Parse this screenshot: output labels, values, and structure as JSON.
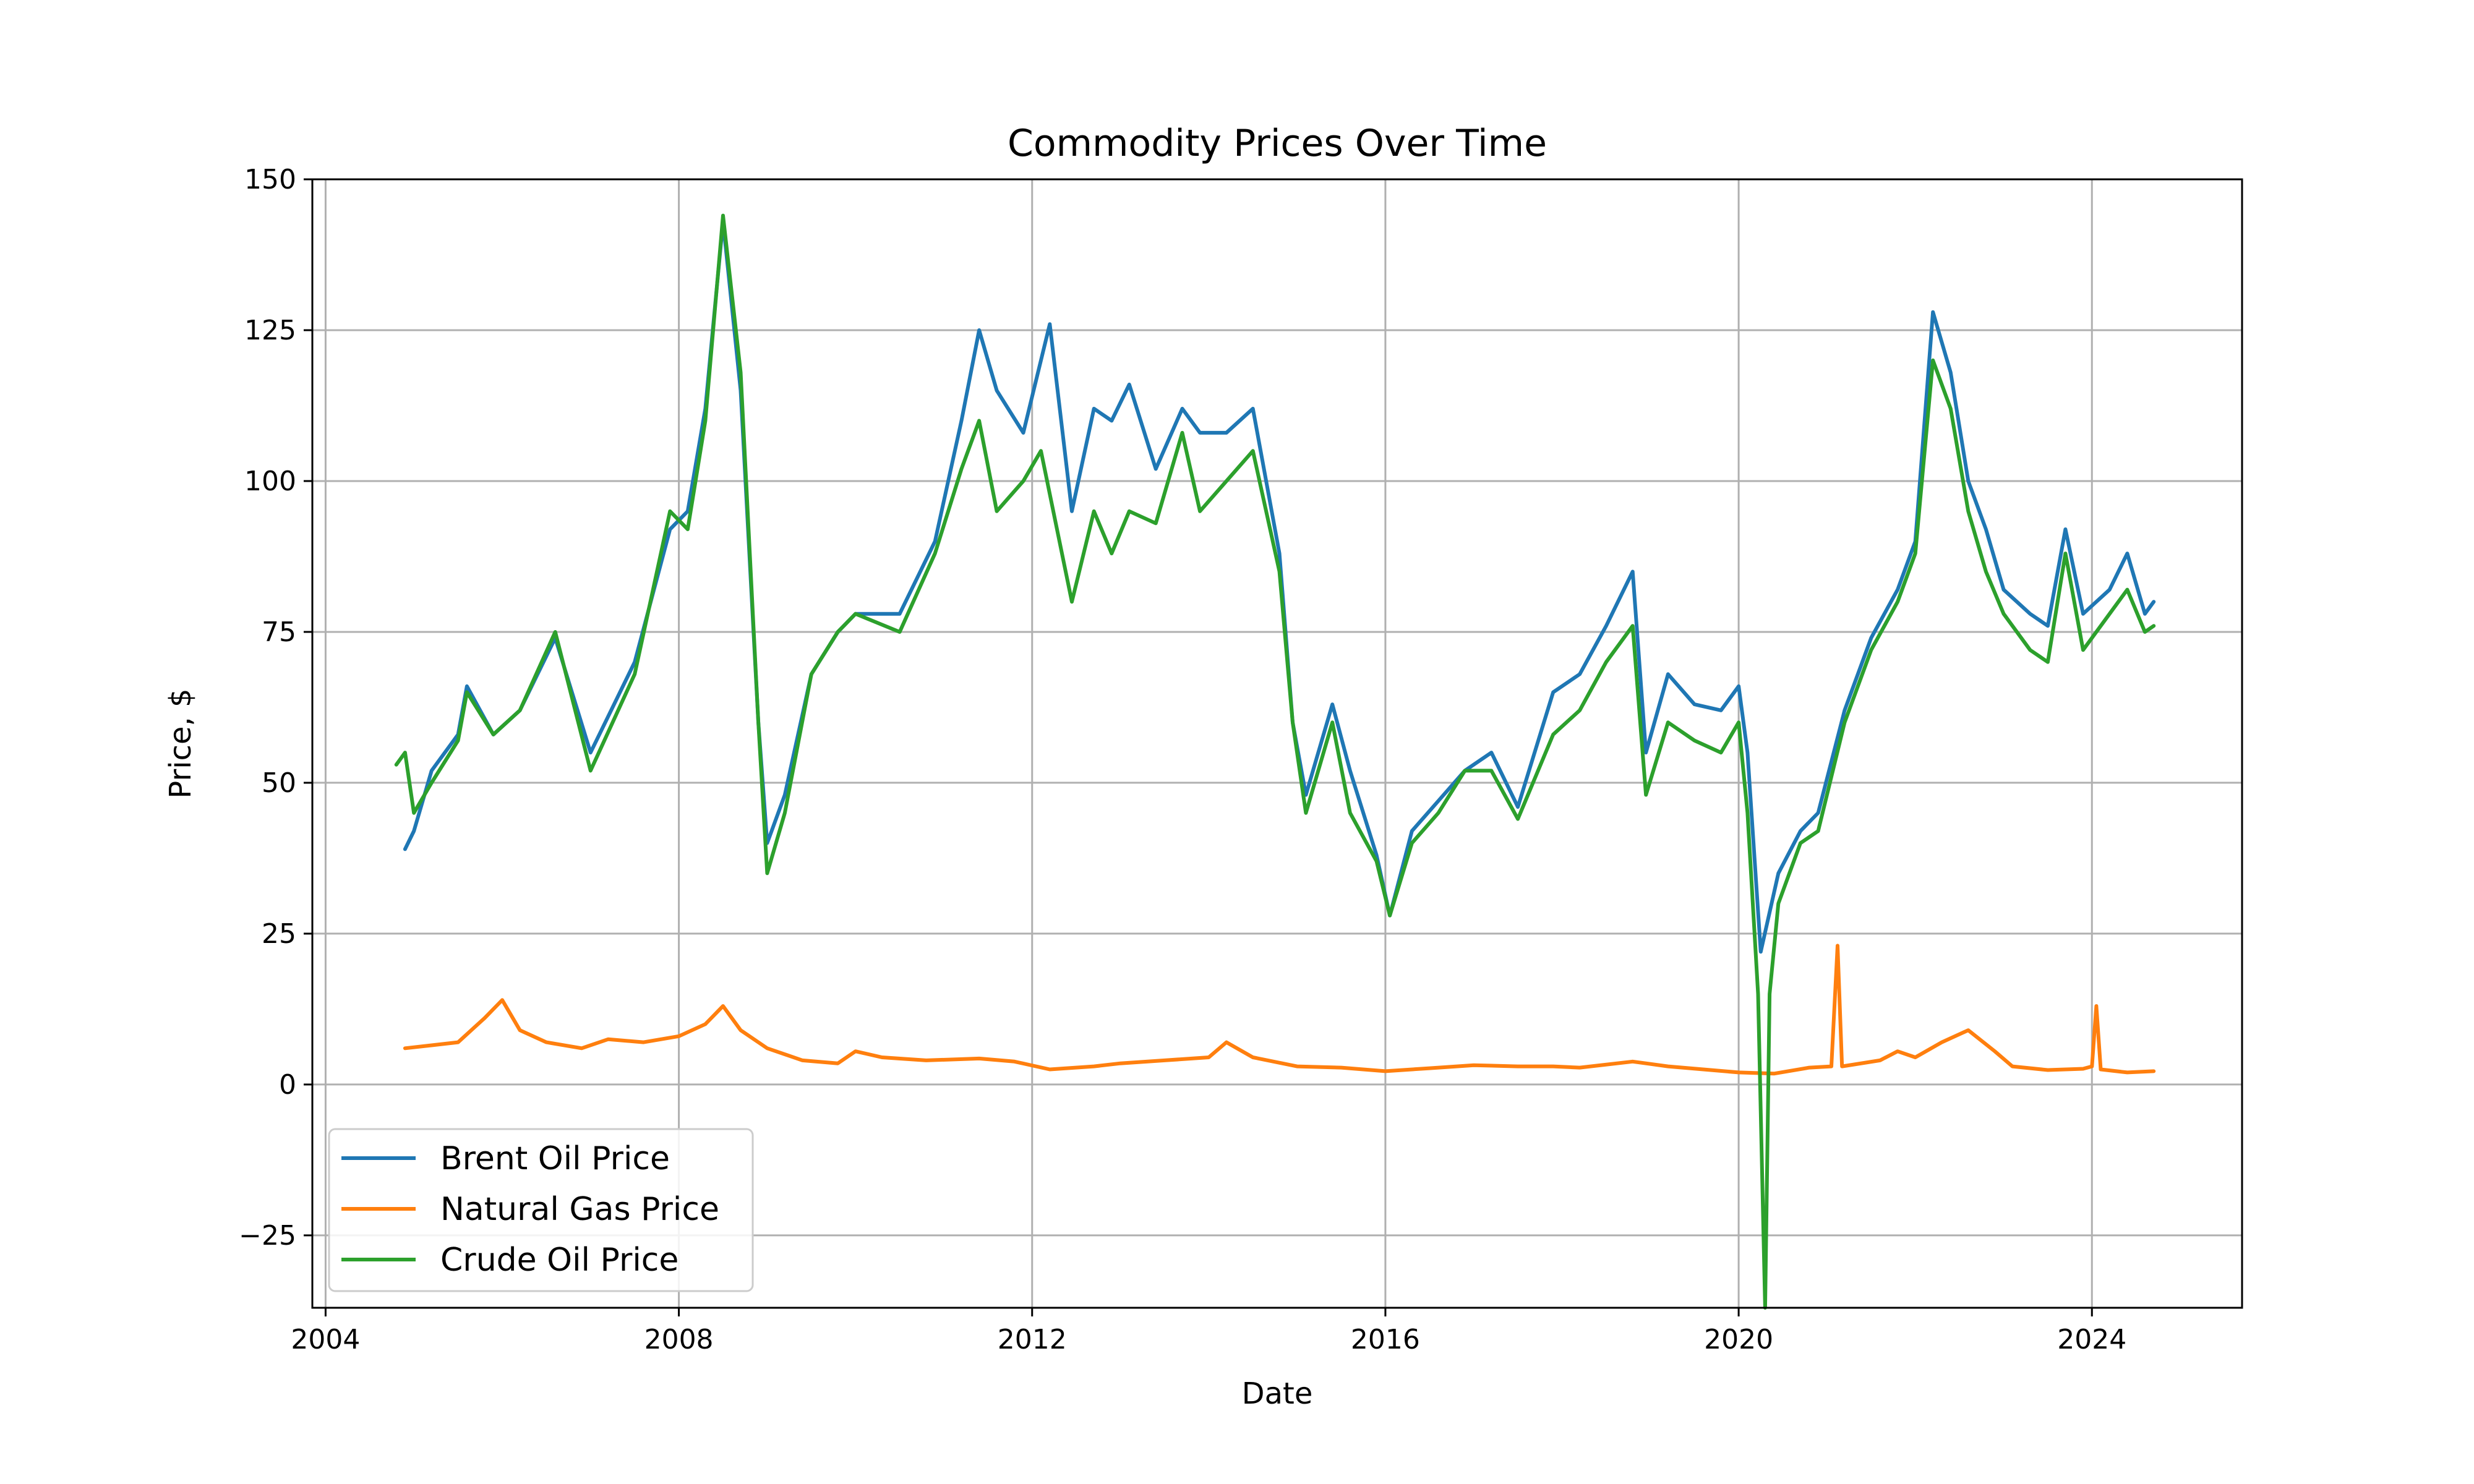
{
  "chart_data": {
    "type": "line",
    "title": "Commodity Prices Over Time",
    "xlabel": "Date",
    "ylabel": "Price, $",
    "xlim": [
      2003.85,
      2025.7
    ],
    "ylim": [
      -37,
      150
    ],
    "x_ticks": [
      {
        "value": 2004,
        "label": "2004"
      },
      {
        "value": 2008,
        "label": "2008"
      },
      {
        "value": 2012,
        "label": "2012"
      },
      {
        "value": 2016,
        "label": "2016"
      },
      {
        "value": 2020,
        "label": "2020"
      },
      {
        "value": 2024,
        "label": "2024"
      }
    ],
    "y_ticks": [
      {
        "value": -25,
        "label": "−25"
      },
      {
        "value": 0,
        "label": "0"
      },
      {
        "value": 25,
        "label": "25"
      },
      {
        "value": 50,
        "label": "50"
      },
      {
        "value": 75,
        "label": "75"
      },
      {
        "value": 100,
        "label": "100"
      },
      {
        "value": 125,
        "label": "125"
      },
      {
        "value": 150,
        "label": "150"
      }
    ],
    "grid": true,
    "legend": "lower-left",
    "series": [
      {
        "name": "Brent Oil Price",
        "color": "#1f77b4",
        "points": [
          [
            2004.9,
            39
          ],
          [
            2005.0,
            42
          ],
          [
            2005.2,
            52
          ],
          [
            2005.5,
            58
          ],
          [
            2005.6,
            66
          ],
          [
            2005.9,
            58
          ],
          [
            2006.2,
            62
          ],
          [
            2006.6,
            74
          ],
          [
            2007.0,
            55
          ],
          [
            2007.5,
            70
          ],
          [
            2007.9,
            92
          ],
          [
            2008.1,
            95
          ],
          [
            2008.3,
            112
          ],
          [
            2008.5,
            143
          ],
          [
            2008.7,
            115
          ],
          [
            2008.9,
            60
          ],
          [
            2009.0,
            40
          ],
          [
            2009.2,
            48
          ],
          [
            2009.5,
            68
          ],
          [
            2009.8,
            75
          ],
          [
            2010.0,
            78
          ],
          [
            2010.5,
            78
          ],
          [
            2010.9,
            90
          ],
          [
            2011.2,
            110
          ],
          [
            2011.4,
            125
          ],
          [
            2011.6,
            115
          ],
          [
            2011.9,
            108
          ],
          [
            2012.1,
            120
          ],
          [
            2012.2,
            126
          ],
          [
            2012.45,
            95
          ],
          [
            2012.7,
            112
          ],
          [
            2012.9,
            110
          ],
          [
            2013.1,
            116
          ],
          [
            2013.4,
            102
          ],
          [
            2013.7,
            112
          ],
          [
            2013.9,
            108
          ],
          [
            2014.2,
            108
          ],
          [
            2014.5,
            112
          ],
          [
            2014.8,
            88
          ],
          [
            2014.95,
            60
          ],
          [
            2015.1,
            48
          ],
          [
            2015.4,
            63
          ],
          [
            2015.6,
            52
          ],
          [
            2015.9,
            38
          ],
          [
            2016.05,
            28
          ],
          [
            2016.3,
            42
          ],
          [
            2016.6,
            47
          ],
          [
            2016.9,
            52
          ],
          [
            2017.2,
            55
          ],
          [
            2017.5,
            46
          ],
          [
            2017.9,
            65
          ],
          [
            2018.2,
            68
          ],
          [
            2018.5,
            76
          ],
          [
            2018.8,
            85
          ],
          [
            2018.95,
            55
          ],
          [
            2019.2,
            68
          ],
          [
            2019.5,
            63
          ],
          [
            2019.8,
            62
          ],
          [
            2020.0,
            66
          ],
          [
            2020.1,
            55
          ],
          [
            2020.25,
            22
          ],
          [
            2020.45,
            35
          ],
          [
            2020.7,
            42
          ],
          [
            2020.9,
            45
          ],
          [
            2021.2,
            62
          ],
          [
            2021.5,
            74
          ],
          [
            2021.8,
            82
          ],
          [
            2022.0,
            90
          ],
          [
            2022.2,
            128
          ],
          [
            2022.4,
            118
          ],
          [
            2022.6,
            100
          ],
          [
            2022.8,
            92
          ],
          [
            2023.0,
            82
          ],
          [
            2023.3,
            78
          ],
          [
            2023.5,
            76
          ],
          [
            2023.7,
            92
          ],
          [
            2023.9,
            78
          ],
          [
            2024.2,
            82
          ],
          [
            2024.4,
            88
          ],
          [
            2024.6,
            78
          ],
          [
            2024.7,
            80
          ]
        ]
      },
      {
        "name": "Natural Gas Price",
        "color": "#ff7f0e",
        "points": [
          [
            2004.9,
            6
          ],
          [
            2005.2,
            6.5
          ],
          [
            2005.5,
            7
          ],
          [
            2005.8,
            11
          ],
          [
            2006.0,
            14
          ],
          [
            2006.2,
            9
          ],
          [
            2006.5,
            7
          ],
          [
            2006.9,
            6
          ],
          [
            2007.2,
            7.5
          ],
          [
            2007.6,
            7
          ],
          [
            2008.0,
            8
          ],
          [
            2008.3,
            10
          ],
          [
            2008.5,
            13
          ],
          [
            2008.7,
            9
          ],
          [
            2009.0,
            6
          ],
          [
            2009.4,
            4
          ],
          [
            2009.8,
            3.5
          ],
          [
            2010.0,
            5.5
          ],
          [
            2010.3,
            4.5
          ],
          [
            2010.8,
            4
          ],
          [
            2011.4,
            4.3
          ],
          [
            2011.8,
            3.8
          ],
          [
            2012.2,
            2.5
          ],
          [
            2012.7,
            3
          ],
          [
            2013.0,
            3.5
          ],
          [
            2013.5,
            4
          ],
          [
            2014.0,
            4.5
          ],
          [
            2014.2,
            7
          ],
          [
            2014.5,
            4.5
          ],
          [
            2015.0,
            3
          ],
          [
            2015.5,
            2.8
          ],
          [
            2016.0,
            2.2
          ],
          [
            2016.5,
            2.7
          ],
          [
            2017.0,
            3.2
          ],
          [
            2017.5,
            3
          ],
          [
            2017.9,
            3
          ],
          [
            2018.2,
            2.8
          ],
          [
            2018.8,
            3.8
          ],
          [
            2019.2,
            3
          ],
          [
            2019.6,
            2.5
          ],
          [
            2020.0,
            2
          ],
          [
            2020.4,
            1.8
          ],
          [
            2020.8,
            2.8
          ],
          [
            2021.05,
            3
          ],
          [
            2021.12,
            23
          ],
          [
            2021.17,
            3
          ],
          [
            2021.6,
            4
          ],
          [
            2021.8,
            5.5
          ],
          [
            2022.0,
            4.5
          ],
          [
            2022.3,
            7
          ],
          [
            2022.6,
            9
          ],
          [
            2022.9,
            5.5
          ],
          [
            2023.1,
            3
          ],
          [
            2023.5,
            2.4
          ],
          [
            2023.9,
            2.6
          ],
          [
            2024.0,
            3
          ],
          [
            2024.05,
            13
          ],
          [
            2024.1,
            2.5
          ],
          [
            2024.4,
            2
          ],
          [
            2024.7,
            2.2
          ]
        ]
      },
      {
        "name": "Crude Oil Price",
        "color": "#2ca02c",
        "points": [
          [
            2004.8,
            53
          ],
          [
            2004.9,
            55
          ],
          [
            2005.0,
            45
          ],
          [
            2005.2,
            50
          ],
          [
            2005.5,
            57
          ],
          [
            2005.6,
            65
          ],
          [
            2005.9,
            58
          ],
          [
            2006.2,
            62
          ],
          [
            2006.6,
            75
          ],
          [
            2007.0,
            52
          ],
          [
            2007.5,
            68
          ],
          [
            2007.9,
            95
          ],
          [
            2008.1,
            92
          ],
          [
            2008.3,
            110
          ],
          [
            2008.5,
            144
          ],
          [
            2008.7,
            118
          ],
          [
            2008.9,
            60
          ],
          [
            2009.0,
            35
          ],
          [
            2009.2,
            45
          ],
          [
            2009.5,
            68
          ],
          [
            2009.8,
            75
          ],
          [
            2010.0,
            78
          ],
          [
            2010.5,
            75
          ],
          [
            2010.9,
            88
          ],
          [
            2011.2,
            102
          ],
          [
            2011.4,
            110
          ],
          [
            2011.6,
            95
          ],
          [
            2011.9,
            100
          ],
          [
            2012.1,
            105
          ],
          [
            2012.45,
            80
          ],
          [
            2012.7,
            95
          ],
          [
            2012.9,
            88
          ],
          [
            2013.1,
            95
          ],
          [
            2013.4,
            93
          ],
          [
            2013.7,
            108
          ],
          [
            2013.9,
            95
          ],
          [
            2014.2,
            100
          ],
          [
            2014.5,
            105
          ],
          [
            2014.8,
            85
          ],
          [
            2014.95,
            60
          ],
          [
            2015.1,
            45
          ],
          [
            2015.4,
            60
          ],
          [
            2015.6,
            45
          ],
          [
            2015.9,
            37
          ],
          [
            2016.05,
            28
          ],
          [
            2016.3,
            40
          ],
          [
            2016.6,
            45
          ],
          [
            2016.9,
            52
          ],
          [
            2017.2,
            52
          ],
          [
            2017.5,
            44
          ],
          [
            2017.9,
            58
          ],
          [
            2018.2,
            62
          ],
          [
            2018.5,
            70
          ],
          [
            2018.8,
            76
          ],
          [
            2018.95,
            48
          ],
          [
            2019.2,
            60
          ],
          [
            2019.5,
            57
          ],
          [
            2019.8,
            55
          ],
          [
            2020.0,
            60
          ],
          [
            2020.1,
            45
          ],
          [
            2020.22,
            15
          ],
          [
            2020.3,
            -37
          ],
          [
            2020.35,
            15
          ],
          [
            2020.45,
            30
          ],
          [
            2020.7,
            40
          ],
          [
            2020.9,
            42
          ],
          [
            2021.2,
            60
          ],
          [
            2021.5,
            72
          ],
          [
            2021.8,
            80
          ],
          [
            2022.0,
            88
          ],
          [
            2022.2,
            120
          ],
          [
            2022.4,
            112
          ],
          [
            2022.6,
            95
          ],
          [
            2022.8,
            85
          ],
          [
            2023.0,
            78
          ],
          [
            2023.3,
            72
          ],
          [
            2023.5,
            70
          ],
          [
            2023.7,
            88
          ],
          [
            2023.9,
            72
          ],
          [
            2024.2,
            78
          ],
          [
            2024.4,
            82
          ],
          [
            2024.6,
            75
          ],
          [
            2024.7,
            76
          ]
        ]
      }
    ]
  }
}
